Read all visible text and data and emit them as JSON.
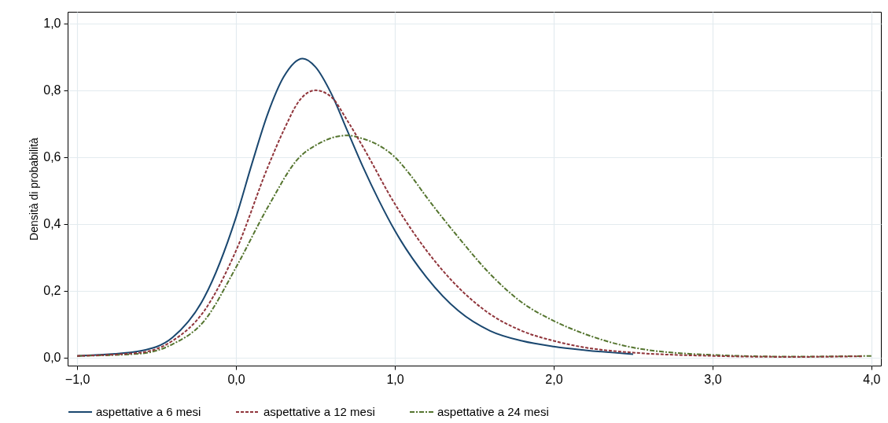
{
  "chart_data": {
    "type": "line",
    "ylabel": "Densità di probabilità",
    "xlim": [
      -1.06,
      4.06
    ],
    "ylim": [
      -0.024,
      1.035
    ],
    "xticks": [
      {
        "value": -1,
        "label": "−1,0"
      },
      {
        "value": 0,
        "label": "0,0"
      },
      {
        "value": 1,
        "label": "1,0"
      },
      {
        "value": 2,
        "label": "2,0"
      },
      {
        "value": 3,
        "label": "3,0"
      },
      {
        "value": 4,
        "label": "4,0"
      }
    ],
    "yticks": [
      {
        "value": 0,
        "label": "0,0"
      },
      {
        "value": 0.2,
        "label": "0,2"
      },
      {
        "value": 0.4,
        "label": "0,4"
      },
      {
        "value": 0.6,
        "label": "0,6"
      },
      {
        "value": 0.8,
        "label": "0,8"
      },
      {
        "value": 1,
        "label": "1,0"
      }
    ],
    "grid": true,
    "legend": "bottom",
    "series": [
      {
        "name": "aspettative a 6 mesi",
        "color": "#1a476f",
        "line_style": "solid",
        "x": [
          -1,
          -0.8,
          -0.6,
          -0.4,
          -0.2,
          0,
          0.1,
          0.2,
          0.3,
          0.42,
          0.5,
          0.6,
          0.7,
          0.8,
          0.9,
          1.0,
          1.2,
          1.4,
          1.6,
          1.8,
          2.0,
          2.2,
          2.5
        ],
        "values": [
          0.005,
          0.01,
          0.02,
          0.06,
          0.18,
          0.42,
          0.58,
          0.73,
          0.84,
          0.895,
          0.87,
          0.79,
          0.68,
          0.57,
          0.47,
          0.38,
          0.24,
          0.14,
          0.08,
          0.05,
          0.033,
          0.022,
          0.01
        ]
      },
      {
        "name": "aspettative a 12 mesi",
        "color": "#90353b",
        "line_style": "dashed",
        "x": [
          -1,
          -0.6,
          -0.4,
          -0.2,
          0,
          0.2,
          0.3,
          0.4,
          0.5,
          0.6,
          0.7,
          0.8,
          1.0,
          1.2,
          1.4,
          1.6,
          1.8,
          2.0,
          2.2,
          2.5,
          3.0,
          3.5,
          3.95
        ],
        "values": [
          0.005,
          0.015,
          0.05,
          0.14,
          0.32,
          0.57,
          0.68,
          0.77,
          0.8,
          0.78,
          0.71,
          0.63,
          0.46,
          0.32,
          0.21,
          0.13,
          0.08,
          0.05,
          0.03,
          0.015,
          0.005,
          0.002,
          0.004
        ]
      },
      {
        "name": "aspettative a 24 mesi",
        "color": "#55752f",
        "line_style": "dashdot",
        "x": [
          -1,
          -0.6,
          -0.4,
          -0.2,
          0,
          0.2,
          0.4,
          0.5,
          0.7,
          0.8,
          0.9,
          1.0,
          1.1,
          1.2,
          1.4,
          1.6,
          1.8,
          2.0,
          2.2,
          2.5,
          3.0,
          3.5,
          4.0
        ],
        "values": [
          0.005,
          0.012,
          0.04,
          0.11,
          0.27,
          0.45,
          0.6,
          0.635,
          0.665,
          0.655,
          0.635,
          0.6,
          0.545,
          0.48,
          0.36,
          0.25,
          0.165,
          0.11,
          0.07,
          0.03,
          0.008,
          0.003,
          0.005
        ]
      }
    ]
  }
}
